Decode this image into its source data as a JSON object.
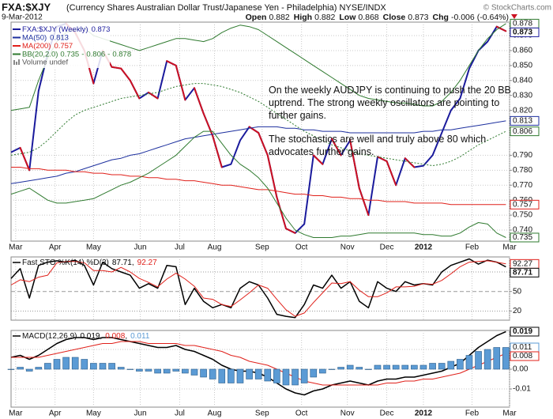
{
  "header": {
    "symbol": "FXA:$XJY",
    "description": "(Currency Shares Australian Dollar Trust/Japanese Yen - Philadelphia) NYSE/INDX",
    "date": "9-Mar-2012",
    "copyright": "© StockCharts.com",
    "quote": [
      {
        "label": "Open",
        "value": 0.882
      },
      {
        "label": "High",
        "value": 0.882
      },
      {
        "label": "Low",
        "value": 0.868
      },
      {
        "label": "Close",
        "value": 0.873
      },
      {
        "label": "Chg",
        "value": -0.006
      }
    ],
    "change_pct": {
      "value": -0.64,
      "label": "(-0.64%)"
    }
  },
  "chart_data": [
    {
      "type": "line",
      "grid": true,
      "xlim": [
        0,
        54.4
      ],
      "xticks": [
        {
          "value": 0.5,
          "label": "Mar"
        },
        {
          "value": 4.8,
          "label": "Apr"
        },
        {
          "value": 9,
          "label": "May"
        },
        {
          "value": 14.1,
          "label": "Jun"
        },
        {
          "value": 18.4,
          "label": "Jul"
        },
        {
          "value": 22.2,
          "label": "Aug"
        },
        {
          "value": 27.4,
          "label": "Sep"
        },
        {
          "value": 31.7,
          "label": "Oct"
        },
        {
          "value": 36.7,
          "label": "Nov"
        },
        {
          "value": 41,
          "label": "Dec"
        },
        {
          "value": 45,
          "label": "2012"
        },
        {
          "value": 50.3,
          "label": "Feb"
        },
        {
          "value": 54.4,
          "label": "Mar"
        }
      ],
      "ylim": [
        0.7326,
        0.879
      ],
      "yticks": [
        {
          "value": 0.74,
          "label": "0.740"
        },
        {
          "value": 0.75,
          "label": "0.750"
        },
        {
          "value": 0.76,
          "label": "0.760"
        },
        {
          "value": 0.77,
          "label": "0.770"
        },
        {
          "value": 0.78,
          "label": "0.780"
        },
        {
          "value": 0.79,
          "label": "0.790"
        },
        {
          "value": 0.82,
          "label": "0.820"
        },
        {
          "value": 0.83,
          "label": "0.830"
        },
        {
          "value": 0.84,
          "label": "0.840"
        },
        {
          "value": 0.85,
          "label": "0.850"
        },
        {
          "value": 0.86,
          "label": "0.860"
        },
        {
          "value": 0.87,
          "label": "0.870"
        }
      ],
      "annotations": [
        "On the weekly AUDJPY is continuing to push the 20 BB uptrend. The strong weekly oscillators are pointing to further gains.",
        "The stochastics are well and truly above 80 which advocates further gains."
      ],
      "bb_legend": {
        "name": "BB(20,2.0)",
        "separator": "-"
      },
      "extra_legend": "Volume undef",
      "series": [
        {
          "name": "FXA:$XJY (Weekly)",
          "color": "#1a1a9c",
          "down_color": "#cc1122",
          "width": 2,
          "values": [
            0.792,
            0.795,
            0.78,
            0.833,
            0.858,
            0.876,
            0.878,
            0.872,
            0.86,
            0.838,
            0.86,
            0.849,
            0.848,
            0.84,
            0.828,
            0.832,
            0.828,
            0.853,
            0.85,
            0.827,
            0.835,
            0.818,
            0.803,
            0.782,
            0.784,
            0.8,
            0.809,
            0.805,
            0.79,
            0.762,
            0.741,
            0.738,
            0.744,
            0.79,
            0.784,
            0.801,
            0.79,
            0.8,
            0.768,
            0.75,
            0.789,
            0.786,
            0.77,
            0.788,
            0.782,
            0.783,
            0.79,
            0.805,
            0.82,
            0.828,
            0.848,
            0.86,
            0.866,
            0.876,
            0.873
          ]
        },
        {
          "name": "MA(50)",
          "color": "#1c2f9e",
          "width": 1,
          "values": [
            0.771,
            0.772,
            0.773,
            0.774,
            0.775,
            0.776,
            0.778,
            0.779,
            0.781,
            0.783,
            0.785,
            0.787,
            0.788,
            0.79,
            0.791,
            0.793,
            0.795,
            0.797,
            0.799,
            0.801,
            0.802,
            0.803,
            0.804,
            0.805,
            0.806,
            0.807,
            0.808,
            0.809,
            0.809,
            0.809,
            0.808,
            0.808,
            0.807,
            0.807,
            0.806,
            0.806,
            0.806,
            0.805,
            0.805,
            0.805,
            0.805,
            0.805,
            0.805,
            0.805,
            0.805,
            0.806,
            0.806,
            0.807,
            0.807,
            0.808,
            0.809,
            0.81,
            0.811,
            0.812,
            0.813
          ]
        },
        {
          "name": "MA(200)",
          "color": "#e0201a",
          "width": 1,
          "values": [
            0.782,
            0.782,
            0.781,
            0.781,
            0.78,
            0.78,
            0.78,
            0.779,
            0.779,
            0.778,
            0.778,
            0.777,
            0.777,
            0.776,
            0.776,
            0.775,
            0.775,
            0.774,
            0.774,
            0.773,
            0.773,
            0.772,
            0.771,
            0.77,
            0.77,
            0.769,
            0.768,
            0.767,
            0.767,
            0.766,
            0.765,
            0.764,
            0.764,
            0.763,
            0.763,
            0.762,
            0.762,
            0.761,
            0.761,
            0.76,
            0.76,
            0.759,
            0.759,
            0.759,
            0.758,
            0.758,
            0.758,
            0.758,
            0.757,
            0.757,
            0.757,
            0.757,
            0.757,
            0.757,
            0.757
          ]
        },
        {
          "color": "#2f7a2f",
          "width": 1,
          "values": [
            0.82,
            0.821,
            0.822,
            0.84,
            0.855,
            0.866,
            0.872,
            0.874,
            0.875,
            0.87,
            0.868,
            0.866,
            0.864,
            0.862,
            0.86,
            0.862,
            0.864,
            0.866,
            0.868,
            0.868,
            0.867,
            0.866,
            0.868,
            0.872,
            0.875,
            0.877,
            0.876,
            0.874,
            0.87,
            0.866,
            0.862,
            0.858,
            0.854,
            0.85,
            0.846,
            0.842,
            0.838,
            0.834,
            0.83,
            0.828,
            0.827,
            0.826,
            0.825,
            0.825,
            0.824,
            0.823,
            0.823,
            0.826,
            0.832,
            0.84,
            0.85,
            0.86,
            0.868,
            0.874,
            0.878
          ]
        },
        {
          "color": "#2f7a2f",
          "width": 1,
          "style": "dotted",
          "values": [
            0.79,
            0.791,
            0.792,
            0.795,
            0.8,
            0.806,
            0.812,
            0.817,
            0.82,
            0.822,
            0.824,
            0.826,
            0.828,
            0.829,
            0.83,
            0.831,
            0.832,
            0.834,
            0.836,
            0.837,
            0.838,
            0.838,
            0.837,
            0.836,
            0.834,
            0.832,
            0.829,
            0.826,
            0.822,
            0.818,
            0.814,
            0.81,
            0.806,
            0.803,
            0.8,
            0.797,
            0.795,
            0.793,
            0.791,
            0.79,
            0.789,
            0.788,
            0.787,
            0.786,
            0.785,
            0.784,
            0.783,
            0.784,
            0.786,
            0.789,
            0.793,
            0.797,
            0.8,
            0.803,
            0.806
          ]
        },
        {
          "color": "#2f7a2f",
          "width": 1,
          "values": [
            0.764,
            0.766,
            0.768,
            0.764,
            0.76,
            0.758,
            0.758,
            0.759,
            0.76,
            0.761,
            0.764,
            0.767,
            0.77,
            0.772,
            0.775,
            0.778,
            0.782,
            0.786,
            0.79,
            0.796,
            0.802,
            0.806,
            0.806,
            0.798,
            0.79,
            0.784,
            0.78,
            0.775,
            0.768,
            0.758,
            0.748,
            0.74,
            0.737,
            0.735,
            0.735,
            0.735,
            0.736,
            0.736,
            0.737,
            0.738,
            0.738,
            0.738,
            0.738,
            0.738,
            0.738,
            0.737,
            0.737,
            0.736,
            0.736,
            0.738,
            0.742,
            0.745,
            0.744,
            0.738,
            0.735
          ]
        }
      ]
    },
    {
      "type": "line",
      "grid": true,
      "ylim": [
        6,
        103
      ],
      "yticks": [
        20,
        50,
        80
      ],
      "legend": {
        "label": "Fast STO %K(14) %D(3)",
        "separator": ","
      },
      "series": [
        {
          "color": "#000000",
          "width": 1.5,
          "values": [
            70,
            85,
            40,
            90,
            95,
            97,
            95,
            98,
            90,
            60,
            95,
            85,
            80,
            75,
            55,
            62,
            55,
            90,
            88,
            30,
            55,
            35,
            25,
            30,
            25,
            55,
            65,
            60,
            40,
            15,
            12,
            10,
            30,
            60,
            55,
            75,
            55,
            65,
            35,
            25,
            65,
            55,
            50,
            65,
            60,
            62,
            60,
            80,
            90,
            95,
            100,
            92,
            98,
            95,
            87.71
          ]
        },
        {
          "color": "#e0201a",
          "width": 1,
          "values": [
            60,
            68,
            65,
            72,
            75,
            94,
            96,
            96,
            94,
            82,
            82,
            80,
            87,
            80,
            70,
            64,
            57,
            69,
            78,
            69,
            58,
            40,
            38,
            30,
            27,
            37,
            48,
            60,
            55,
            38,
            22,
            12,
            17,
            33,
            48,
            63,
            62,
            65,
            52,
            42,
            42,
            48,
            57,
            57,
            58,
            62,
            61,
            67,
            77,
            88,
            95,
            96,
            97,
            95,
            92.27
          ]
        }
      ]
    },
    {
      "type": "line",
      "grid": true,
      "ylim": [
        -0.0192,
        0.0196
      ],
      "yticks": [
        -0.01,
        {
          "value": 0,
          "label": "0.00"
        },
        0.01
      ],
      "legend": {
        "label": "MACD(12,26,9)",
        "separator": ","
      },
      "series": [
        {
          "color": "#000000",
          "width": 1.5,
          "values": [
            0.006,
            0.007,
            0.005,
            0.007,
            0.01,
            0.013,
            0.015,
            0.016,
            0.016,
            0.015,
            0.016,
            0.016,
            0.015,
            0.014,
            0.013,
            0.012,
            0.011,
            0.011,
            0.012,
            0.01,
            0.009,
            0.007,
            0.005,
            0.002,
            0.0,
            -0.001,
            -0.001,
            -0.002,
            -0.004,
            -0.007,
            -0.01,
            -0.012,
            -0.013,
            -0.011,
            -0.01,
            -0.008,
            -0.007,
            -0.006,
            -0.007,
            -0.008,
            -0.006,
            -0.005,
            -0.005,
            -0.004,
            -0.004,
            -0.003,
            -0.002,
            -0.001,
            0.001,
            0.003,
            0.007,
            0.011,
            0.014,
            0.017,
            0.019
          ]
        },
        {
          "color": "#e0201a",
          "width": 1,
          "values": [
            0.006,
            0.006,
            0.006,
            0.006,
            0.007,
            0.008,
            0.009,
            0.01,
            0.011,
            0.012,
            0.013,
            0.013,
            0.014,
            0.014,
            0.014,
            0.013,
            0.013,
            0.013,
            0.013,
            0.012,
            0.012,
            0.011,
            0.01,
            0.009,
            0.007,
            0.006,
            0.004,
            0.003,
            0.002,
            0.0,
            -0.002,
            -0.004,
            -0.006,
            -0.007,
            -0.008,
            -0.008,
            -0.008,
            -0.008,
            -0.008,
            -0.008,
            -0.008,
            -0.007,
            -0.007,
            -0.006,
            -0.006,
            -0.005,
            -0.005,
            -0.004,
            -0.003,
            -0.002,
            0.0,
            0.002,
            0.004,
            0.006,
            0.008
          ]
        },
        {
          "type": "bar",
          "color": "#5b9bd5",
          "values": [
            0.0,
            0.001,
            -0.001,
            0.001,
            0.003,
            0.005,
            0.006,
            0.006,
            0.005,
            0.003,
            0.003,
            0.003,
            0.001,
            0.0,
            -0.001,
            -0.001,
            -0.002,
            -0.002,
            -0.001,
            -0.002,
            -0.003,
            -0.004,
            -0.005,
            -0.007,
            -0.007,
            -0.007,
            -0.005,
            -0.005,
            -0.006,
            -0.007,
            -0.008,
            -0.008,
            -0.007,
            -0.004,
            -0.002,
            0.0,
            0.001,
            0.002,
            0.001,
            0.0,
            0.002,
            0.002,
            0.002,
            0.002,
            0.002,
            0.002,
            0.003,
            0.003,
            0.004,
            0.005,
            0.007,
            0.009,
            0.01,
            0.011,
            0.011
          ]
        }
      ]
    }
  ]
}
